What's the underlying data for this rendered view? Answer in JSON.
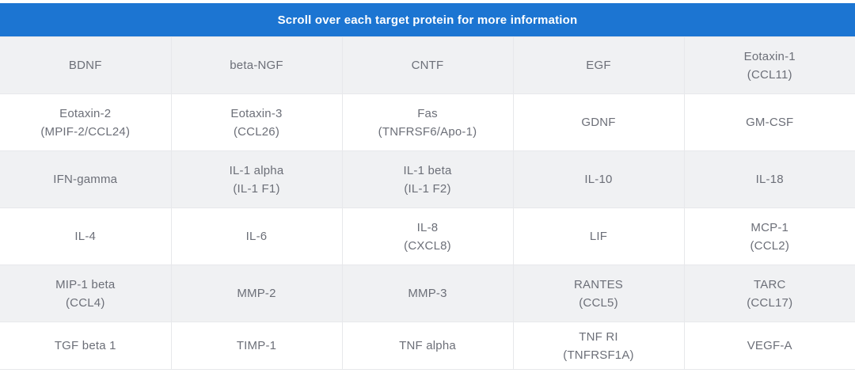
{
  "colors": {
    "banner_background": "#1c75d2",
    "banner_text": "#ffffff",
    "row_alternate_background": "#f0f1f3",
    "row_background": "#ffffff",
    "cell_text": "#6c6f78",
    "cell_border": "#e7e8eb"
  },
  "banner": {
    "label": "Scroll over each target protein for more information"
  },
  "table": {
    "columns": 5,
    "rows": [
      {
        "cells": [
          {
            "line1": "BDNF",
            "line2": ""
          },
          {
            "line1": "beta-NGF",
            "line2": ""
          },
          {
            "line1": "CNTF",
            "line2": ""
          },
          {
            "line1": "EGF",
            "line2": ""
          },
          {
            "line1": "Eotaxin-1",
            "line2": "(CCL11)"
          }
        ]
      },
      {
        "cells": [
          {
            "line1": "Eotaxin-2",
            "line2": "(MPIF-2/CCL24)"
          },
          {
            "line1": "Eotaxin-3",
            "line2": "(CCL26)"
          },
          {
            "line1": "Fas",
            "line2": "(TNFRSF6/Apo-1)"
          },
          {
            "line1": "GDNF",
            "line2": ""
          },
          {
            "line1": "GM-CSF",
            "line2": ""
          }
        ]
      },
      {
        "cells": [
          {
            "line1": "IFN-gamma",
            "line2": ""
          },
          {
            "line1": "IL-1 alpha",
            "line2": "(IL-1 F1)"
          },
          {
            "line1": "IL-1 beta",
            "line2": "(IL-1 F2)"
          },
          {
            "line1": "IL-10",
            "line2": ""
          },
          {
            "line1": "IL-18",
            "line2": ""
          }
        ]
      },
      {
        "cells": [
          {
            "line1": "IL-4",
            "line2": ""
          },
          {
            "line1": "IL-6",
            "line2": ""
          },
          {
            "line1": "IL-8",
            "line2": "(CXCL8)"
          },
          {
            "line1": "LIF",
            "line2": ""
          },
          {
            "line1": "MCP-1",
            "line2": "(CCL2)"
          }
        ]
      },
      {
        "cells": [
          {
            "line1": "MIP-1 beta",
            "line2": "(CCL4)"
          },
          {
            "line1": "MMP-2",
            "line2": ""
          },
          {
            "line1": "MMP-3",
            "line2": ""
          },
          {
            "line1": "RANTES",
            "line2": "(CCL5)"
          },
          {
            "line1": "TARC",
            "line2": "(CCL17)"
          }
        ]
      },
      {
        "cells": [
          {
            "line1": "TGF beta 1",
            "line2": ""
          },
          {
            "line1": "TIMP-1",
            "line2": ""
          },
          {
            "line1": "TNF alpha",
            "line2": ""
          },
          {
            "line1": "TNF RI",
            "line2": "(TNFRSF1A)"
          },
          {
            "line1": "VEGF-A",
            "line2": ""
          }
        ]
      }
    ]
  }
}
